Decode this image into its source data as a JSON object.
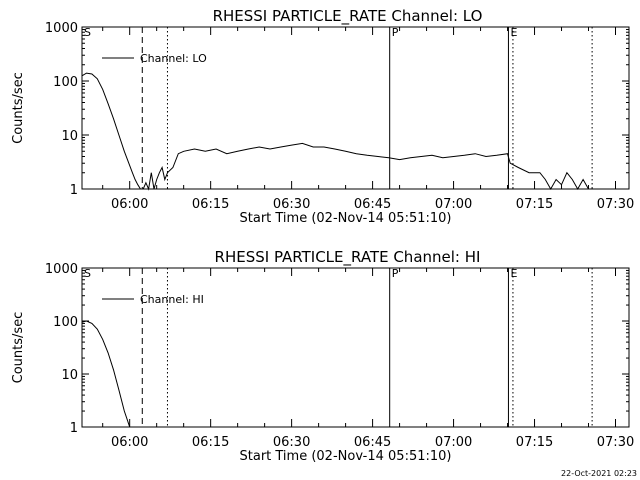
{
  "footer_timestamp": "22-Oct-2021 02:23",
  "chart_data": [
    {
      "type": "line",
      "title": "RHESSI PARTICLE_RATE Channel: LO",
      "xlabel": "Start Time (02-Nov-14 05:51:10)",
      "ylabel": "Counts/sec",
      "yscale": "log",
      "ylim": [
        1,
        1000
      ],
      "xlim": [
        "05:51:10",
        "07:32:30"
      ],
      "x_ticks": [
        "06:00",
        "06:15",
        "06:30",
        "06:45",
        "07:00",
        "07:15",
        "07:30"
      ],
      "y_ticks": [
        "1",
        "10",
        "100",
        "1000"
      ],
      "grid": false,
      "legend": {
        "position": "top-left",
        "entries": [
          "Channel: LO"
        ]
      },
      "markers": [
        {
          "label": "S",
          "time": "05:51:10",
          "style": "none"
        },
        {
          "label": "",
          "time": "06:02:20",
          "style": "dashed"
        },
        {
          "label": "",
          "time": "06:07:00",
          "style": "dotted"
        },
        {
          "label": "P",
          "time": "06:48:10",
          "style": "solid"
        },
        {
          "label": "E",
          "time": "07:10:10",
          "style": "solid"
        },
        {
          "label": "",
          "time": "07:11:00",
          "style": "dotted"
        },
        {
          "label": "",
          "time": "07:25:40",
          "style": "dotted"
        }
      ],
      "series": [
        {
          "name": "Channel: LO",
          "x": [
            "05:51:10",
            "05:52:00",
            "05:53:00",
            "05:54:00",
            "05:55:00",
            "05:56:00",
            "05:57:00",
            "05:58:00",
            "05:59:00",
            "05:59:50",
            "06:00:30",
            "06:01:00",
            "06:01:30",
            "06:02:00",
            "06:02:30",
            "06:03:00",
            "06:03:30",
            "06:04:00",
            "06:04:30",
            "06:05:00",
            "06:05:30",
            "06:06:00",
            "06:06:30",
            "06:07:00",
            "06:08:00",
            "06:09:00",
            "06:10:00",
            "06:12:00",
            "06:14:00",
            "06:16:00",
            "06:18:00",
            "06:20:00",
            "06:22:00",
            "06:24:00",
            "06:26:00",
            "06:28:00",
            "06:30:00",
            "06:32:00",
            "06:34:00",
            "06:36:00",
            "06:38:00",
            "06:40:00",
            "06:42:00",
            "06:44:00",
            "06:46:00",
            "06:48:00",
            "06:50:00",
            "06:52:00",
            "06:54:00",
            "06:56:00",
            "06:58:00",
            "07:00:00",
            "07:02:00",
            "07:04:00",
            "07:06:00",
            "07:08:00",
            "07:10:00",
            "07:10:30",
            "07:12:00",
            "07:14:00",
            "07:16:00",
            "07:17:00",
            "07:18:00",
            "07:19:00",
            "07:20:00",
            "07:21:00",
            "07:22:00",
            "07:23:00",
            "07:24:00",
            "07:25:00",
            "07:26:00"
          ],
          "values": [
            125,
            140,
            135,
            110,
            70,
            38,
            20,
            10,
            5,
            3,
            2,
            1.5,
            1.2,
            1,
            1,
            1.3,
            1,
            2,
            1,
            1.5,
            2,
            2.5,
            1.5,
            2,
            2.5,
            4.5,
            5,
            5.5,
            5,
            5.5,
            4.5,
            5,
            5.5,
            6,
            5.5,
            6,
            6.5,
            7,
            6,
            6,
            5.5,
            5,
            4.5,
            4.2,
            4,
            3.8,
            3.5,
            3.8,
            4,
            4.2,
            3.8,
            4,
            4.2,
            4.5,
            4,
            4.2,
            4.5,
            3,
            2.5,
            2,
            2,
            1.5,
            1,
            1.5,
            1.2,
            2,
            1.5,
            1,
            1.5,
            1,
            1
          ]
        }
      ]
    },
    {
      "type": "line",
      "title": "RHESSI PARTICLE_RATE Channel: HI",
      "xlabel": "Start Time (02-Nov-14 05:51:10)",
      "ylabel": "Counts/sec",
      "yscale": "log",
      "ylim": [
        1,
        1000
      ],
      "xlim": [
        "05:51:10",
        "07:32:30"
      ],
      "x_ticks": [
        "06:00",
        "06:15",
        "06:30",
        "06:45",
        "07:00",
        "07:15",
        "07:30"
      ],
      "y_ticks": [
        "1",
        "10",
        "100",
        "1000"
      ],
      "grid": false,
      "legend": {
        "position": "top-left",
        "entries": [
          "Channel: HI"
        ]
      },
      "markers": [
        {
          "label": "S",
          "time": "05:51:10",
          "style": "none"
        },
        {
          "label": "",
          "time": "06:02:20",
          "style": "dashed"
        },
        {
          "label": "",
          "time": "06:07:00",
          "style": "dotted"
        },
        {
          "label": "P",
          "time": "06:48:10",
          "style": "solid"
        },
        {
          "label": "E",
          "time": "07:10:10",
          "style": "solid"
        },
        {
          "label": "",
          "time": "07:11:00",
          "style": "dotted"
        },
        {
          "label": "",
          "time": "07:25:40",
          "style": "dotted"
        }
      ],
      "series": [
        {
          "name": "Channel: HI",
          "x": [
            "05:51:10",
            "05:52:00",
            "05:53:00",
            "05:54:00",
            "05:55:00",
            "05:56:00",
            "05:57:00",
            "05:58:00",
            "05:59:00",
            "06:00:00"
          ],
          "values": [
            95,
            100,
            90,
            70,
            45,
            25,
            12,
            5,
            2,
            1
          ]
        }
      ]
    }
  ]
}
